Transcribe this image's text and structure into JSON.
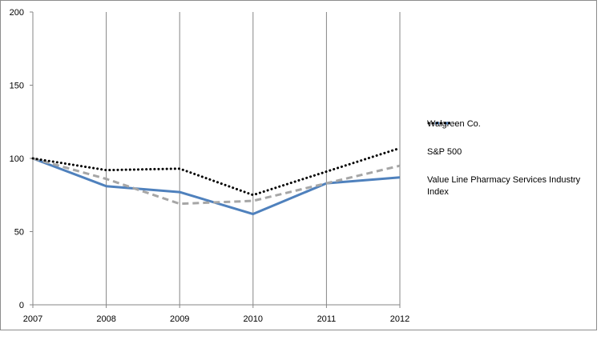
{
  "chart_data": {
    "type": "line",
    "categories": [
      "2007",
      "2008",
      "2009",
      "2010",
      "2011",
      "2012"
    ],
    "y_ticks": [
      "0",
      "50",
      "100",
      "150",
      "200"
    ],
    "ylim": [
      0,
      200
    ],
    "grid": "vertical",
    "legend_position": "right",
    "series": [
      {
        "name": "Walgreen Co.",
        "values": [
          100,
          81,
          77,
          62,
          83,
          87
        ],
        "color": "#4f81bd",
        "style": "solid"
      },
      {
        "name": "S&P 500",
        "values": [
          100,
          86,
          69,
          71,
          83,
          95
        ],
        "color": "#a6a6a6",
        "style": "dashed"
      },
      {
        "name": "Value Line Pharmacy Services Industry Index",
        "values": [
          100,
          92,
          93,
          75,
          91,
          107
        ],
        "color": "#000000",
        "style": "dotted"
      }
    ]
  }
}
